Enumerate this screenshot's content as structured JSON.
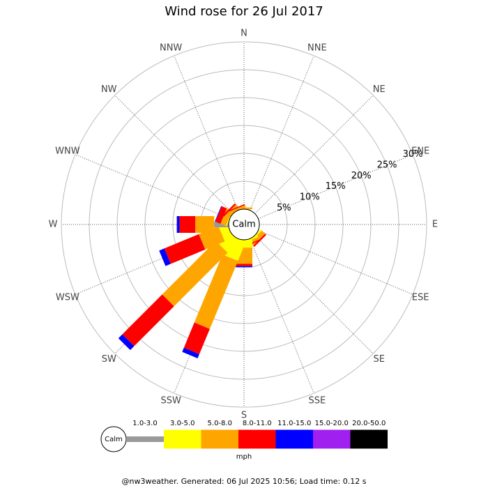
{
  "chart_data": {
    "type": "windrose",
    "title": "Wind rose for 26 Jul 2017",
    "center_label": "Calm",
    "unit": "mph",
    "footer": "@nw3weather. Generated: 06 Jul 2025 10:56; Load time: 0.12 s",
    "directions": [
      "N",
      "NNE",
      "NE",
      "ENE",
      "E",
      "ESE",
      "SE",
      "SSE",
      "S",
      "SSW",
      "SW",
      "WSW",
      "W",
      "WNW",
      "NW",
      "NNW"
    ],
    "rlim": [
      0,
      30
    ],
    "rticks": [
      {
        "value": 5,
        "label": "5%"
      },
      {
        "value": 10,
        "label": "10%"
      },
      {
        "value": 15,
        "label": "15%"
      },
      {
        "value": 20,
        "label": "20%"
      },
      {
        "value": 25,
        "label": "25%"
      },
      {
        "value": 30,
        "label": "30%"
      }
    ],
    "series": [
      {
        "name": "1.0-3.0",
        "color": "#999999",
        "values": [
          0,
          0,
          0,
          0,
          0,
          0,
          0,
          0,
          0,
          0,
          0,
          0,
          2.6,
          0,
          0,
          0
        ]
      },
      {
        "name": "3.0-5.0",
        "color": "#ffff00",
        "values": [
          0,
          0,
          0,
          0,
          0,
          0,
          0.3,
          0.3,
          1.4,
          3.7,
          2.9,
          1.6,
          0,
          0.2,
          0,
          0
        ]
      },
      {
        "name": "5.0-8.0",
        "color": "#ffa500",
        "values": [
          0.3,
          0,
          0,
          0,
          0,
          0,
          0.8,
          0.5,
          2.9,
          13.2,
          13.6,
          3.8,
          3.4,
          1.0,
          0.8,
          0.4
        ]
      },
      {
        "name": "8.0-11.0",
        "color": "#ff0000",
        "values": [
          0,
          0,
          0,
          0,
          0,
          0,
          0.3,
          0.2,
          0.4,
          4.9,
          10.1,
          6.7,
          2.8,
          1.0,
          0.3,
          0.2
        ]
      },
      {
        "name": "11.0-15.0",
        "color": "#0000ff",
        "values": [
          0,
          0,
          0,
          0,
          0,
          0,
          0,
          0,
          0.2,
          0.8,
          1.0,
          1.0,
          0.5,
          0.1,
          0,
          0
        ]
      },
      {
        "name": "15.0-20.0",
        "color": "#a020f0",
        "values": [
          0,
          0,
          0,
          0,
          0,
          0,
          0,
          0,
          0,
          0,
          0,
          0,
          0,
          0,
          0,
          0
        ]
      },
      {
        "name": "20.0-50.0",
        "color": "#000000",
        "values": [
          0,
          0,
          0,
          0,
          0,
          0,
          0,
          0,
          0,
          0,
          0,
          0,
          0,
          0,
          0,
          0
        ]
      }
    ]
  }
}
